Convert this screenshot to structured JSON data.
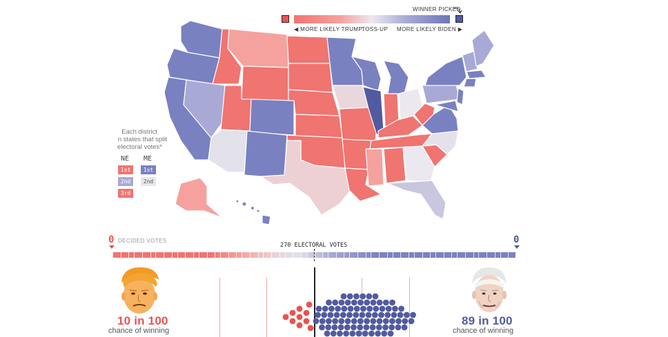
{
  "colors": {
    "trump_strong": "#f07470",
    "trump_lean": "#f5a29e",
    "tossup": "#e9e6ee",
    "biden_lean": "#a9a9d5",
    "biden_strong": "#7a81c1",
    "winner_red": "#e8544f",
    "winner_blue": "#525aa0"
  },
  "legend": {
    "more_trump": "◀ MORE LIKELY TRUMP",
    "tossup": "TOSS-UP",
    "more_biden": "MORE LIKELY BIDEN ▶",
    "winner_picked": "WINNER PICKED"
  },
  "districts": {
    "note_line1": "Each district",
    "note_line2": "n states that split",
    "note_line3": "electoral votes*",
    "ne_header": "NE",
    "me_header": "ME",
    "ne": [
      {
        "label": "1st",
        "color": "#f07470"
      },
      {
        "label": "2nd",
        "color": "#a9a9d5"
      },
      {
        "label": "3rd",
        "color": "#f07470"
      }
    ],
    "me": [
      {
        "label": "1st",
        "color": "#7a81c1"
      },
      {
        "label": "2nd",
        "color": "#e9e6ee"
      }
    ]
  },
  "electoral_bar": {
    "left_count": "0",
    "right_count": "0",
    "decided_label": "DECIDED VOTES",
    "center_label": "270 ELECTORAL VOTES"
  },
  "candidates": {
    "trump": {
      "odds": "10 in 100",
      "sub": "chance of winning",
      "icon": "trump-caricature-icon"
    },
    "biden": {
      "odds": "89 in 100",
      "sub": "chance of winning",
      "icon": "biden-caricature-icon"
    }
  },
  "simulation": {
    "red_dots": 10,
    "blue_dots": 89
  }
}
